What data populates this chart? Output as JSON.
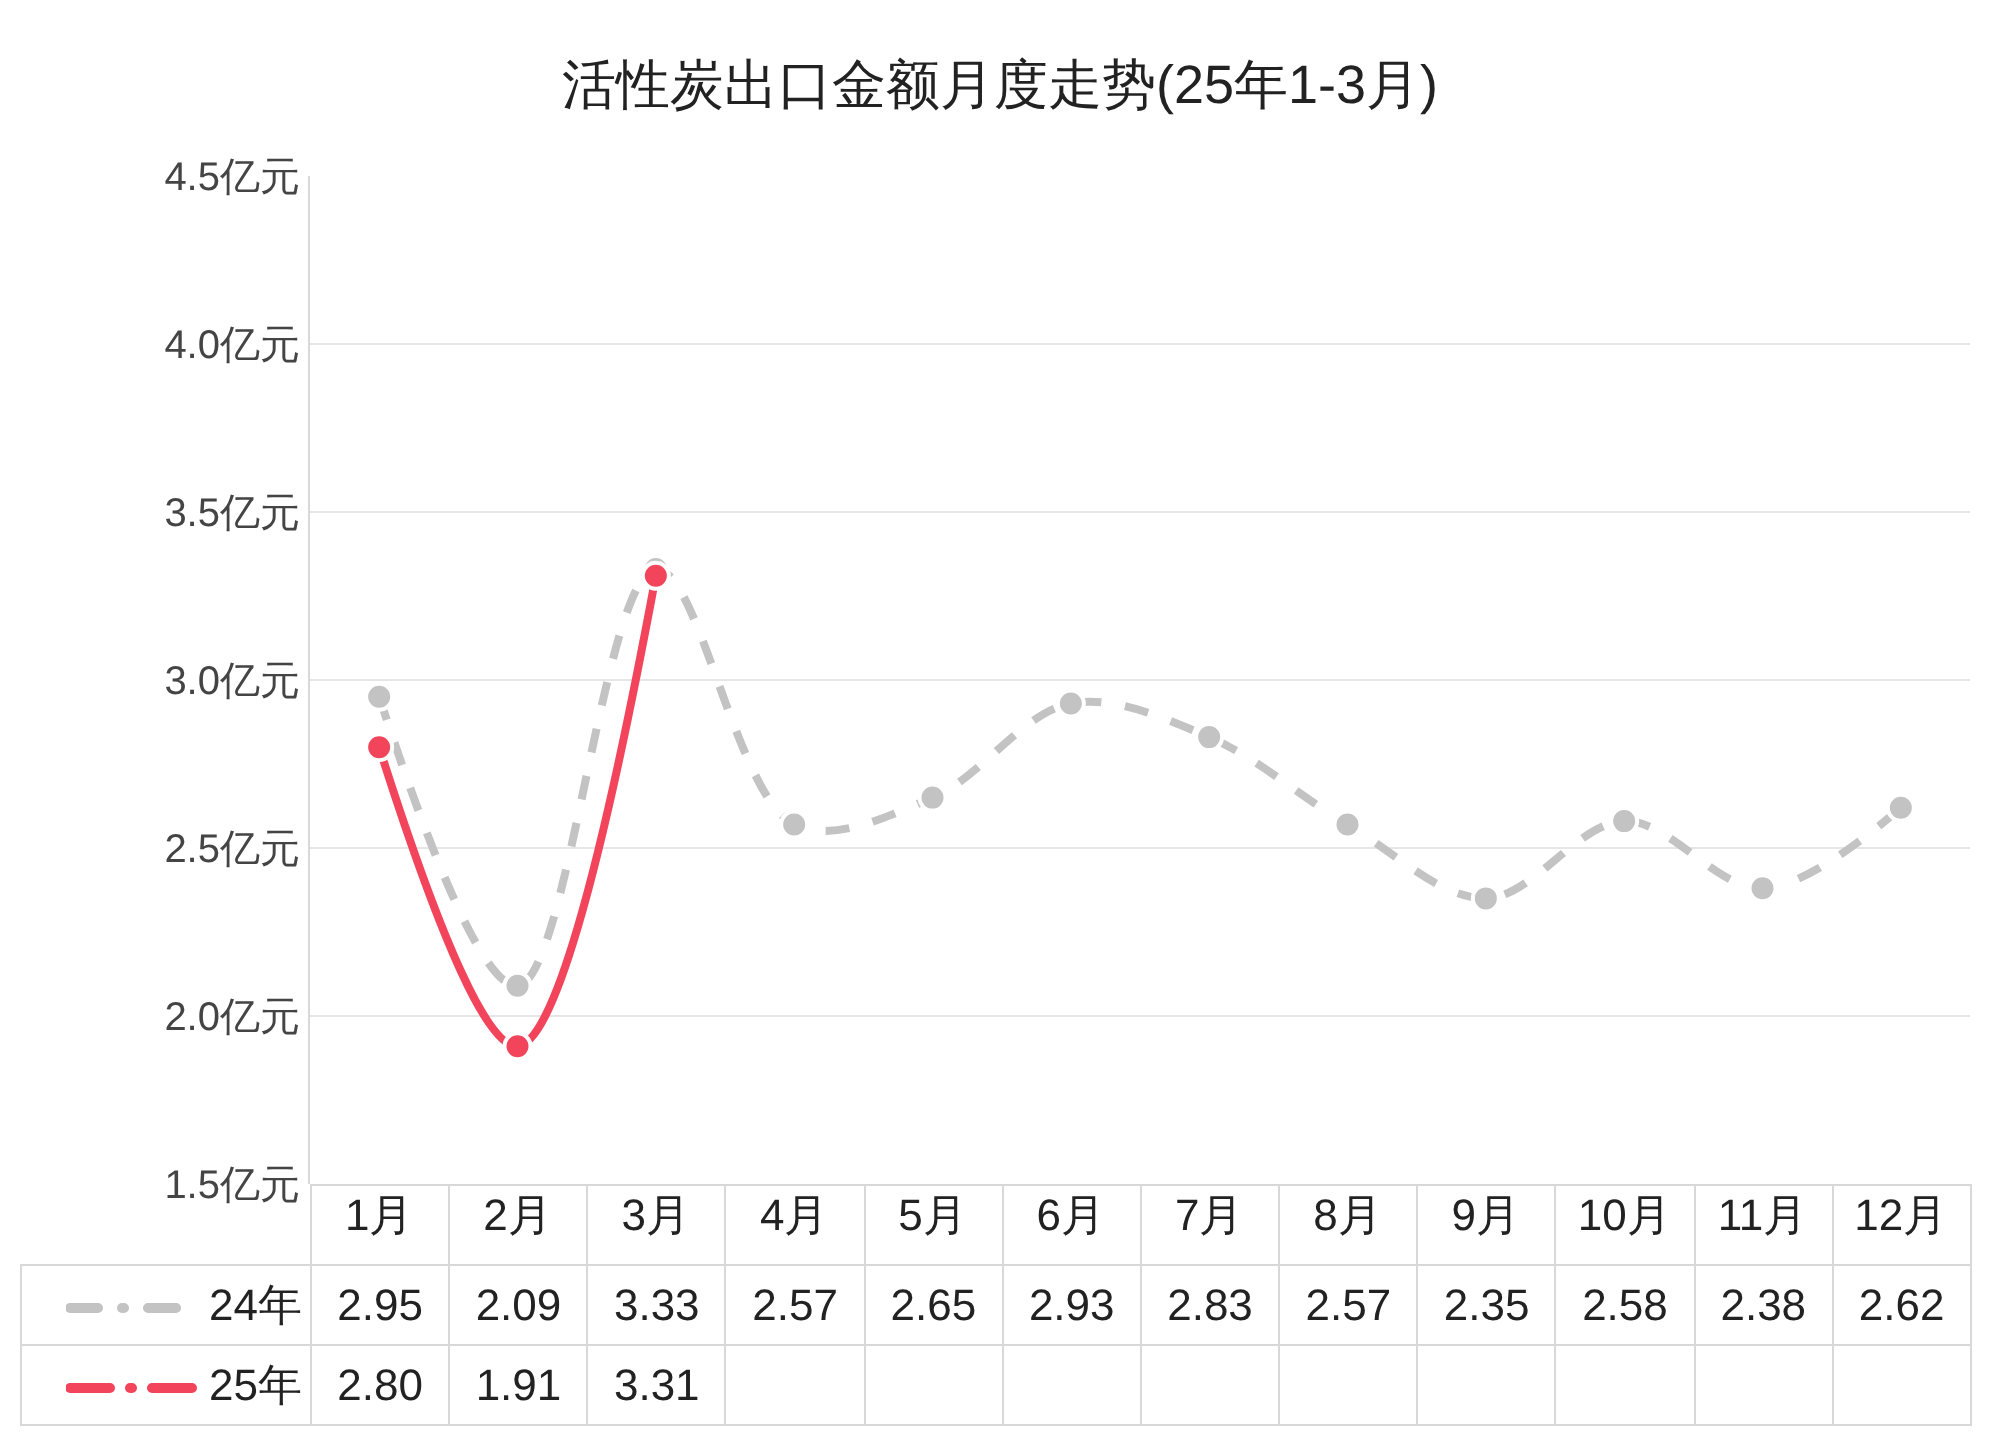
{
  "chart_data": {
    "type": "line",
    "title": "活性炭出口金额月度走势(25年1-3月)",
    "categories": [
      "1月",
      "2月",
      "3月",
      "4月",
      "5月",
      "6月",
      "7月",
      "8月",
      "9月",
      "10月",
      "11月",
      "12月"
    ],
    "series": [
      {
        "name": "24年",
        "color": "#c3c3c3",
        "line_style": "dashed",
        "values": [
          2.95,
          2.09,
          3.33,
          2.57,
          2.65,
          2.93,
          2.83,
          2.57,
          2.35,
          2.58,
          2.38,
          2.62
        ],
        "value_labels": [
          "2.95",
          "2.09",
          "3.33",
          "2.57",
          "2.65",
          "2.93",
          "2.83",
          "2.57",
          "2.35",
          "2.58",
          "2.38",
          "2.62"
        ]
      },
      {
        "name": "25年",
        "color": "#f2455c",
        "line_style": "solid",
        "values": [
          2.8,
          1.91,
          3.31,
          null,
          null,
          null,
          null,
          null,
          null,
          null,
          null,
          null
        ],
        "value_labels": [
          "2.80",
          "1.91",
          "3.31",
          null,
          null,
          null,
          null,
          null,
          null,
          null,
          null,
          null
        ]
      }
    ],
    "ylim": [
      1.5,
      4.5
    ],
    "yticks": [
      {
        "value": 1.5,
        "label": "1.5亿元"
      },
      {
        "value": 2.0,
        "label": "2.0亿元"
      },
      {
        "value": 2.5,
        "label": "2.5亿元"
      },
      {
        "value": 3.0,
        "label": "3.0亿元"
      },
      {
        "value": 3.5,
        "label": "3.5亿元"
      },
      {
        "value": 4.0,
        "label": "4.0亿元"
      },
      {
        "value": 4.5,
        "label": "4.5亿元"
      }
    ],
    "grid": "y",
    "legend": "bottom",
    "marker": "circle"
  }
}
